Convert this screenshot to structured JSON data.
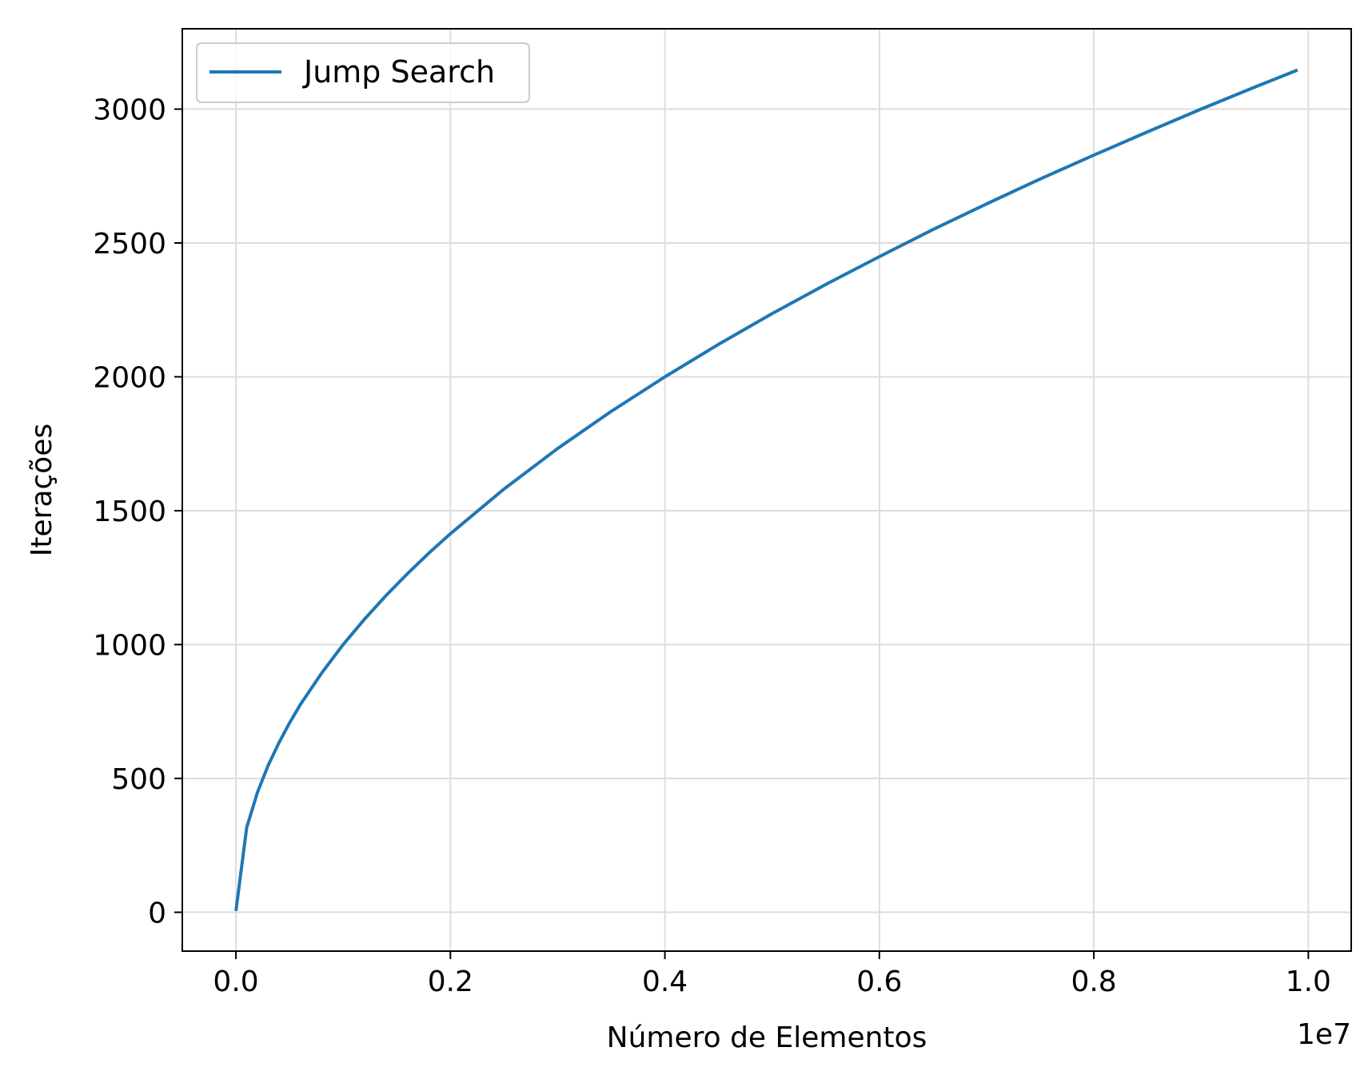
{
  "chart_data": {
    "type": "line",
    "xlabel": "Número de Elementos",
    "ylabel": "Iterações",
    "x_offset_label": "1e7",
    "xlim": [
      -0.05,
      1.04
    ],
    "ylim": [
      -145,
      3300
    ],
    "x_ticks": [
      0.0,
      0.2,
      0.4,
      0.6,
      0.8,
      1.0
    ],
    "x_tick_labels": [
      "0.0",
      "0.2",
      "0.4",
      "0.6",
      "0.8",
      "1.0"
    ],
    "y_ticks": [
      0,
      500,
      1000,
      1500,
      2000,
      2500,
      3000
    ],
    "y_tick_labels": [
      "0",
      "500",
      "1000",
      "1500",
      "2000",
      "2500",
      "3000"
    ],
    "grid": true,
    "legend_position": "top-left",
    "series": [
      {
        "name": "Jump Search",
        "color": "#1f77b4",
        "x": [
          0.0,
          0.01,
          0.02,
          0.03,
          0.04,
          0.05,
          0.06,
          0.08,
          0.1,
          0.12,
          0.14,
          0.16,
          0.18,
          0.2,
          0.25,
          0.3,
          0.35,
          0.4,
          0.45,
          0.5,
          0.55,
          0.6,
          0.65,
          0.7,
          0.75,
          0.8,
          0.85,
          0.9,
          0.95,
          0.99
        ],
        "y": [
          5,
          316,
          447,
          548,
          632,
          707,
          775,
          894,
          1000,
          1095,
          1183,
          1265,
          1342,
          1414,
          1581,
          1732,
          1871,
          2000,
          2121,
          2236,
          2345,
          2449,
          2550,
          2646,
          2739,
          2828,
          2915,
          3000,
          3082,
          3146
        ]
      }
    ]
  }
}
